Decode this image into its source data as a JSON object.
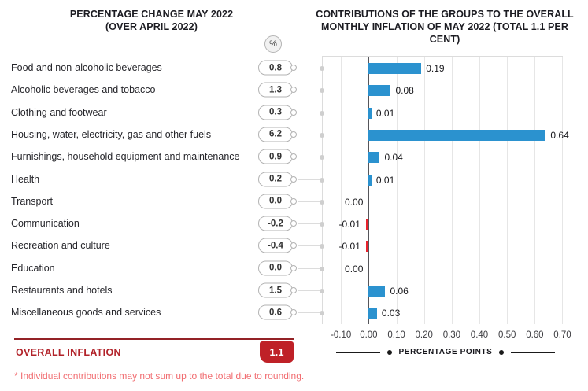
{
  "left_panel": {
    "title_line1": "PERCENTAGE CHANGE MAY 2022",
    "title_line2": "(OVER APRIL 2022)",
    "unit_badge": "%",
    "overall_label": "OVERALL INFLATION",
    "overall_value": "1.1",
    "footnote": "* Individual contributions may not sum up to the total due to rounding."
  },
  "right_panel": {
    "title_line1": "CONTRIBUTIONS OF THE GROUPS TO THE OVERALL",
    "title_line2": "MONTHLY INFLATION OF MAY 2022 (TOTAL 1.1 PER CENT)",
    "axis_caption": "PERCENTAGE POINTS"
  },
  "chart_data": {
    "type": "bar",
    "orientation": "horizontal",
    "title": "CONTRIBUTIONS OF THE GROUPS TO THE OVERALL MONTHLY INFLATION OF MAY 2022 (TOTAL 1.1 PER CENT)",
    "categories": [
      "Food and non-alcoholic beverages",
      "Alcoholic beverages and tobacco",
      "Clothing and footwear",
      "Housing, water, electricity, gas and other fuels",
      "Furnishings, household equipment and maintenance",
      "Health",
      "Transport",
      "Communication",
      "Recreation and culture",
      "Education",
      "Restaurants and hotels",
      "Miscellaneous goods and services"
    ],
    "series": [
      {
        "name": "Percentage change May 2022 (over April 2022), %",
        "values": [
          0.8,
          1.3,
          0.3,
          6.2,
          0.9,
          0.2,
          0.0,
          -0.2,
          -0.4,
          0.0,
          1.5,
          0.6
        ],
        "labels": [
          "0.8",
          "1.3",
          "0.3",
          "6.2",
          "0.9",
          "0.2",
          "0.0",
          "-0.2",
          "-0.4",
          "0.0",
          "1.5",
          "0.6"
        ]
      },
      {
        "name": "Contribution to monthly inflation, percentage points",
        "values": [
          0.19,
          0.08,
          0.01,
          0.64,
          0.04,
          0.01,
          0.0,
          -0.01,
          -0.01,
          0.0,
          0.06,
          0.03
        ],
        "labels": [
          "0.19",
          "0.08",
          "0.01",
          "0.64",
          "0.04",
          "0.01",
          "0.00",
          "-0.01",
          "-0.01",
          "0.00",
          "0.06",
          "0.03"
        ]
      }
    ],
    "xlabel": "PERCENTAGE POINTS",
    "xticks": [
      "-0.10",
      "0.00",
      "0.10",
      "0.20",
      "0.30",
      "0.40",
      "0.50",
      "0.60",
      "0.70"
    ],
    "xtick_values": [
      -0.1,
      0.0,
      0.1,
      0.2,
      0.3,
      0.4,
      0.5,
      0.6,
      0.7
    ],
    "xlim": [
      -0.1,
      0.7
    ],
    "grid": true,
    "legend_position": "none",
    "total": "1.1",
    "colors": {
      "bar_positive": "#2B92CF",
      "bar_negative": "#E8222C",
      "accent_rule": "#932226",
      "accent_text": "#B2232A",
      "accent_box": "#BF2127",
      "footnote": "#F16D71"
    }
  }
}
